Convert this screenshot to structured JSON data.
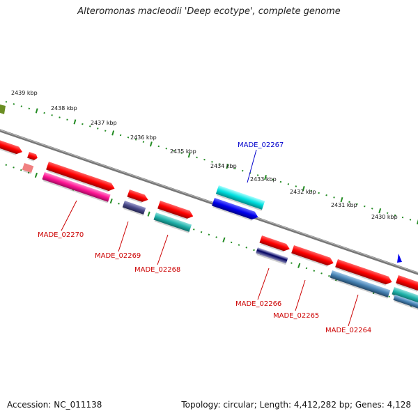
{
  "title": "Alteromonas macleodii 'Deep ecotype', complete genome",
  "footer": {
    "accession": "Accession: NC_011138",
    "summary": "Topology: circular; Length: 4,412,282 bp; Genes: 4,128"
  },
  "scale_labels": [
    "2439 kbp",
    "2438 kbp",
    "2437 kbp",
    "2436 kbp",
    "2435 kbp",
    "2434 kbp",
    "2433 kbp",
    "2432 kbp",
    "2431 kbp",
    "2430 kbp"
  ],
  "gene_labels": [
    {
      "text": "MADE_02267",
      "color": "#0000cc"
    },
    {
      "text": "MADE_02270",
      "color": "#cc0000"
    },
    {
      "text": "MADE_02269",
      "color": "#cc0000"
    },
    {
      "text": "MADE_02268",
      "color": "#cc0000"
    },
    {
      "text": "MADE_02266",
      "color": "#cc0000"
    },
    {
      "text": "MADE_02265",
      "color": "#cc0000"
    },
    {
      "text": "MADE_02264",
      "color": "#cc0000"
    }
  ],
  "colors": {
    "backbone": "#808080",
    "tick": "#228b22",
    "cds": "#ff0000",
    "blue": "#0000ee",
    "cyan": "#00d8d8",
    "teal": "#20b2aa",
    "magenta": "#ff1493",
    "slate": "#4a4a8a",
    "steel": "#4682b4",
    "olive": "#6b8e23",
    "pink": "#f08080"
  }
}
